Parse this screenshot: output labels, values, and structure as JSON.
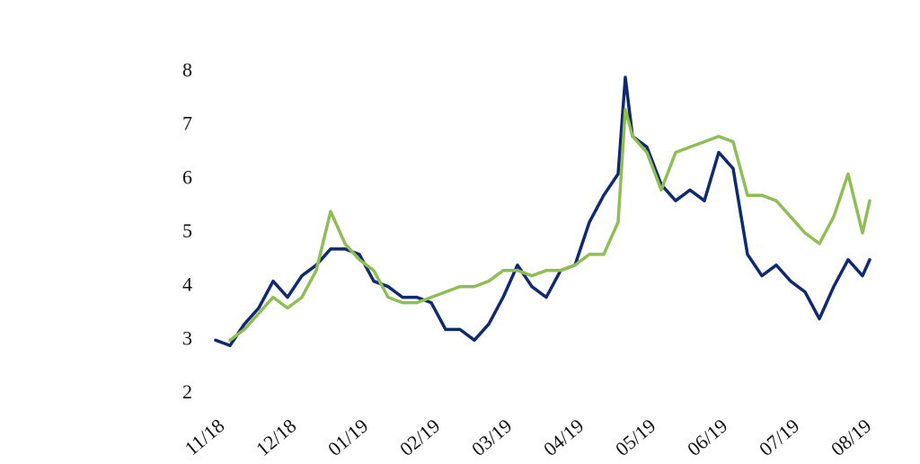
{
  "chart_data": {
    "type": "line",
    "x": [
      0,
      0.2,
      0.4,
      0.6,
      0.8,
      1.0,
      1.2,
      1.4,
      1.6,
      1.8,
      2.0,
      2.2,
      2.4,
      2.6,
      2.8,
      3.0,
      3.2,
      3.4,
      3.6,
      3.8,
      4.0,
      4.2,
      4.4,
      4.6,
      4.8,
      5.0,
      5.2,
      5.4,
      5.6,
      5.7,
      5.8,
      6.0,
      6.2,
      6.4,
      6.6,
      6.8,
      7.0,
      7.2,
      7.4,
      7.6,
      7.8,
      8.0,
      8.2,
      8.4,
      8.6,
      8.8,
      9.0,
      9.1
    ],
    "series": [
      {
        "color": "#0f2a6e",
        "values": [
          3.0,
          2.9,
          3.3,
          3.6,
          4.1,
          3.8,
          4.2,
          4.4,
          4.7,
          4.7,
          4.6,
          4.1,
          4.0,
          3.8,
          3.8,
          3.7,
          3.2,
          3.2,
          3.0,
          3.3,
          3.8,
          4.4,
          4.0,
          3.8,
          4.3,
          4.4,
          5.2,
          5.7,
          6.1,
          7.9,
          6.8,
          6.6,
          5.9,
          5.6,
          5.8,
          5.6,
          6.5,
          6.2,
          4.6,
          4.2,
          4.4,
          4.1,
          3.9,
          3.4,
          4.0,
          4.5,
          4.2,
          4.5
        ]
      },
      {
        "color": "#8fbe57",
        "values": [
          null,
          3.0,
          3.2,
          3.5,
          3.8,
          3.6,
          3.8,
          4.3,
          5.4,
          4.8,
          4.5,
          4.3,
          3.8,
          3.7,
          3.7,
          3.8,
          3.9,
          4.0,
          4.0,
          4.1,
          4.3,
          4.3,
          4.2,
          4.3,
          4.3,
          4.4,
          4.6,
          4.6,
          5.2,
          7.3,
          6.8,
          6.5,
          5.8,
          6.5,
          6.6,
          6.7,
          6.8,
          6.7,
          5.7,
          5.7,
          5.6,
          5.3,
          5.0,
          4.8,
          5.3,
          6.1,
          5.0,
          5.6
        ]
      }
    ],
    "xlim": [
      0,
      9.1
    ],
    "xticks": [
      {
        "value": 0,
        "label": "11/18"
      },
      {
        "value": 1,
        "label": "12/18"
      },
      {
        "value": 2,
        "label": "01/19"
      },
      {
        "value": 3,
        "label": "02/19"
      },
      {
        "value": 4,
        "label": "03/19"
      },
      {
        "value": 5,
        "label": "04/19"
      },
      {
        "value": 6,
        "label": "05/19"
      },
      {
        "value": 7,
        "label": "06/19"
      },
      {
        "value": 8,
        "label": "07/19"
      },
      {
        "value": 9,
        "label": "08/19"
      }
    ],
    "ylim": [
      2,
      8
    ],
    "yticks": [
      2,
      3,
      4,
      5,
      6,
      7,
      8
    ],
    "grid": false
  }
}
